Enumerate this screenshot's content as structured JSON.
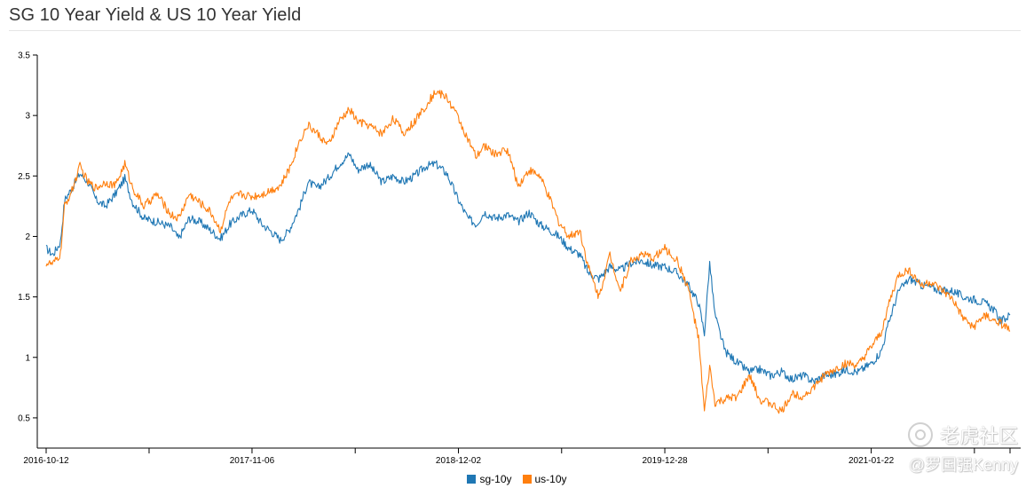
{
  "chart_data": {
    "type": "line",
    "title": "SG 10 Year Yield & US 10 Year Yield",
    "xlabel": "",
    "ylabel": "",
    "x_range": [
      "2016-10-12",
      "2021-10-12"
    ],
    "x_ticks": [
      "2016-10-12",
      "2017-11-06",
      "2018-12-02",
      "2019-12-28",
      "2021-01-22"
    ],
    "ylim": [
      0.25,
      3.5
    ],
    "y_ticks": [
      0.5,
      1,
      1.5,
      2,
      2.5,
      3,
      3.5
    ],
    "y_tick_labels": [
      "0.5",
      "1",
      "1.5",
      "2",
      "2.5",
      "3",
      "3.5"
    ],
    "grid": false,
    "legend_position": "bottom-center",
    "series": [
      {
        "name": "sg-10y",
        "color": "#1f77b4",
        "points": [
          [
            "2016-10-12",
            1.9
          ],
          [
            "2016-10-25",
            1.85
          ],
          [
            "2016-11-08",
            1.95
          ],
          [
            "2016-11-16",
            2.3
          ],
          [
            "2016-11-30",
            2.4
          ],
          [
            "2016-12-15",
            2.52
          ],
          [
            "2016-12-30",
            2.45
          ],
          [
            "2017-01-15",
            2.3
          ],
          [
            "2017-02-01",
            2.25
          ],
          [
            "2017-02-20",
            2.35
          ],
          [
            "2017-03-10",
            2.48
          ],
          [
            "2017-03-25",
            2.28
          ],
          [
            "2017-04-15",
            2.15
          ],
          [
            "2017-05-10",
            2.12
          ],
          [
            "2017-06-05",
            2.08
          ],
          [
            "2017-06-20",
            1.98
          ],
          [
            "2017-07-10",
            2.15
          ],
          [
            "2017-07-30",
            2.12
          ],
          [
            "2017-08-20",
            2.05
          ],
          [
            "2017-09-07",
            1.98
          ],
          [
            "2017-09-25",
            2.1
          ],
          [
            "2017-10-15",
            2.17
          ],
          [
            "2017-11-06",
            2.22
          ],
          [
            "2017-11-25",
            2.1
          ],
          [
            "2017-12-10",
            2.05
          ],
          [
            "2017-12-30",
            1.97
          ],
          [
            "2018-01-15",
            2.05
          ],
          [
            "2018-02-05",
            2.25
          ],
          [
            "2018-02-20",
            2.45
          ],
          [
            "2018-03-10",
            2.4
          ],
          [
            "2018-03-30",
            2.48
          ],
          [
            "2018-04-20",
            2.6
          ],
          [
            "2018-05-10",
            2.68
          ],
          [
            "2018-05-25",
            2.55
          ],
          [
            "2018-06-15",
            2.6
          ],
          [
            "2018-07-10",
            2.45
          ],
          [
            "2018-08-01",
            2.5
          ],
          [
            "2018-08-20",
            2.45
          ],
          [
            "2018-09-10",
            2.5
          ],
          [
            "2018-10-01",
            2.58
          ],
          [
            "2018-10-20",
            2.6
          ],
          [
            "2018-11-10",
            2.52
          ],
          [
            "2018-12-02",
            2.3
          ],
          [
            "2018-12-20",
            2.15
          ],
          [
            "2019-01-05",
            2.1
          ],
          [
            "2019-01-20",
            2.2
          ],
          [
            "2019-02-10",
            2.15
          ],
          [
            "2019-03-05",
            2.18
          ],
          [
            "2019-03-25",
            2.12
          ],
          [
            "2019-04-15",
            2.2
          ],
          [
            "2019-05-05",
            2.1
          ],
          [
            "2019-05-25",
            2.05
          ],
          [
            "2019-06-10",
            2.0
          ],
          [
            "2019-06-30",
            1.9
          ],
          [
            "2019-07-20",
            1.85
          ],
          [
            "2019-08-05",
            1.7
          ],
          [
            "2019-08-25",
            1.65
          ],
          [
            "2019-09-15",
            1.75
          ],
          [
            "2019-10-05",
            1.72
          ],
          [
            "2019-10-25",
            1.78
          ],
          [
            "2019-11-15",
            1.8
          ],
          [
            "2019-12-05",
            1.76
          ],
          [
            "2019-12-28",
            1.75
          ],
          [
            "2020-01-20",
            1.7
          ],
          [
            "2020-02-10",
            1.6
          ],
          [
            "2020-03-01",
            1.45
          ],
          [
            "2020-03-12",
            1.2
          ],
          [
            "2020-03-22",
            1.78
          ],
          [
            "2020-04-01",
            1.35
          ],
          [
            "2020-04-20",
            1.05
          ],
          [
            "2020-05-15",
            0.95
          ],
          [
            "2020-06-05",
            0.88
          ],
          [
            "2020-06-25",
            0.9
          ],
          [
            "2020-07-15",
            0.85
          ],
          [
            "2020-08-05",
            0.88
          ],
          [
            "2020-08-25",
            0.82
          ],
          [
            "2020-09-15",
            0.85
          ],
          [
            "2020-10-05",
            0.8
          ],
          [
            "2020-10-25",
            0.85
          ],
          [
            "2020-11-15",
            0.86
          ],
          [
            "2020-12-05",
            0.9
          ],
          [
            "2020-12-28",
            0.88
          ],
          [
            "2021-01-22",
            0.95
          ],
          [
            "2021-02-10",
            1.05
          ],
          [
            "2021-02-25",
            1.3
          ],
          [
            "2021-03-15",
            1.55
          ],
          [
            "2021-04-05",
            1.65
          ],
          [
            "2021-04-25",
            1.6
          ],
          [
            "2021-05-15",
            1.58
          ],
          [
            "2021-06-05",
            1.55
          ],
          [
            "2021-06-25",
            1.55
          ],
          [
            "2021-07-15",
            1.5
          ],
          [
            "2021-08-05",
            1.48
          ],
          [
            "2021-08-25",
            1.45
          ],
          [
            "2021-09-10",
            1.4
          ],
          [
            "2021-09-25",
            1.3
          ],
          [
            "2021-10-12",
            1.35
          ]
        ]
      },
      {
        "name": "us-10y",
        "color": "#ff7f0e",
        "points": [
          [
            "2016-10-12",
            1.78
          ],
          [
            "2016-10-25",
            1.77
          ],
          [
            "2016-11-08",
            1.85
          ],
          [
            "2016-11-16",
            2.25
          ],
          [
            "2016-11-30",
            2.38
          ],
          [
            "2016-12-15",
            2.58
          ],
          [
            "2016-12-30",
            2.45
          ],
          [
            "2017-01-15",
            2.4
          ],
          [
            "2017-02-01",
            2.45
          ],
          [
            "2017-02-20",
            2.42
          ],
          [
            "2017-03-10",
            2.6
          ],
          [
            "2017-03-25",
            2.4
          ],
          [
            "2017-04-15",
            2.25
          ],
          [
            "2017-05-10",
            2.35
          ],
          [
            "2017-06-05",
            2.18
          ],
          [
            "2017-06-20",
            2.15
          ],
          [
            "2017-07-10",
            2.35
          ],
          [
            "2017-07-30",
            2.28
          ],
          [
            "2017-08-20",
            2.2
          ],
          [
            "2017-09-07",
            2.05
          ],
          [
            "2017-09-25",
            2.3
          ],
          [
            "2017-10-15",
            2.35
          ],
          [
            "2017-11-06",
            2.33
          ],
          [
            "2017-11-25",
            2.35
          ],
          [
            "2017-12-10",
            2.38
          ],
          [
            "2017-12-30",
            2.42
          ],
          [
            "2018-01-15",
            2.55
          ],
          [
            "2018-02-05",
            2.8
          ],
          [
            "2018-02-20",
            2.92
          ],
          [
            "2018-03-10",
            2.85
          ],
          [
            "2018-03-30",
            2.75
          ],
          [
            "2018-04-20",
            2.95
          ],
          [
            "2018-05-10",
            3.05
          ],
          [
            "2018-05-25",
            2.95
          ],
          [
            "2018-06-15",
            2.92
          ],
          [
            "2018-07-10",
            2.85
          ],
          [
            "2018-08-01",
            2.98
          ],
          [
            "2018-08-20",
            2.85
          ],
          [
            "2018-09-10",
            2.95
          ],
          [
            "2018-10-01",
            3.08
          ],
          [
            "2018-10-20",
            3.2
          ],
          [
            "2018-11-10",
            3.15
          ],
          [
            "2018-12-02",
            2.98
          ],
          [
            "2018-12-20",
            2.8
          ],
          [
            "2019-01-05",
            2.65
          ],
          [
            "2019-01-20",
            2.75
          ],
          [
            "2019-02-10",
            2.68
          ],
          [
            "2019-03-05",
            2.72
          ],
          [
            "2019-03-25",
            2.42
          ],
          [
            "2019-04-15",
            2.55
          ],
          [
            "2019-05-05",
            2.5
          ],
          [
            "2019-05-25",
            2.3
          ],
          [
            "2019-06-10",
            2.12
          ],
          [
            "2019-06-30",
            2.0
          ],
          [
            "2019-07-20",
            2.05
          ],
          [
            "2019-08-05",
            1.75
          ],
          [
            "2019-08-25",
            1.5
          ],
          [
            "2019-09-15",
            1.85
          ],
          [
            "2019-10-05",
            1.55
          ],
          [
            "2019-10-25",
            1.8
          ],
          [
            "2019-11-15",
            1.85
          ],
          [
            "2019-12-05",
            1.82
          ],
          [
            "2019-12-28",
            1.9
          ],
          [
            "2020-01-20",
            1.8
          ],
          [
            "2020-02-10",
            1.58
          ],
          [
            "2020-03-01",
            1.15
          ],
          [
            "2020-03-12",
            0.55
          ],
          [
            "2020-03-22",
            0.92
          ],
          [
            "2020-04-01",
            0.62
          ],
          [
            "2020-04-20",
            0.65
          ],
          [
            "2020-05-15",
            0.68
          ],
          [
            "2020-06-05",
            0.85
          ],
          [
            "2020-06-25",
            0.65
          ],
          [
            "2020-07-15",
            0.62
          ],
          [
            "2020-08-05",
            0.55
          ],
          [
            "2020-08-25",
            0.7
          ],
          [
            "2020-09-15",
            0.68
          ],
          [
            "2020-10-05",
            0.75
          ],
          [
            "2020-10-25",
            0.85
          ],
          [
            "2020-11-15",
            0.9
          ],
          [
            "2020-12-05",
            0.95
          ],
          [
            "2020-12-28",
            0.93
          ],
          [
            "2021-01-22",
            1.08
          ],
          [
            "2021-02-10",
            1.2
          ],
          [
            "2021-02-25",
            1.45
          ],
          [
            "2021-03-15",
            1.68
          ],
          [
            "2021-04-05",
            1.72
          ],
          [
            "2021-04-25",
            1.6
          ],
          [
            "2021-05-15",
            1.62
          ],
          [
            "2021-06-05",
            1.55
          ],
          [
            "2021-06-25",
            1.48
          ],
          [
            "2021-07-15",
            1.32
          ],
          [
            "2021-08-05",
            1.25
          ],
          [
            "2021-08-25",
            1.35
          ],
          [
            "2021-09-10",
            1.3
          ],
          [
            "2021-09-25",
            1.28
          ],
          [
            "2021-10-12",
            1.22
          ]
        ]
      }
    ]
  },
  "watermark": {
    "brand": "老虎社区",
    "author": "@罗国强Kenny"
  }
}
